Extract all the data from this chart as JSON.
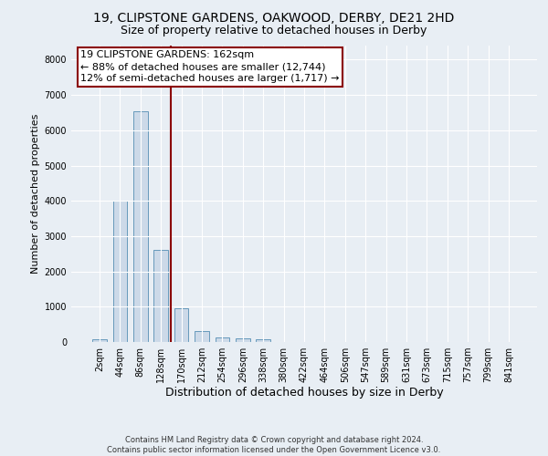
{
  "title1": "19, CLIPSTONE GARDENS, OAKWOOD, DERBY, DE21 2HD",
  "title2": "Size of property relative to detached houses in Derby",
  "xlabel": "Distribution of detached houses by size in Derby",
  "ylabel": "Number of detached properties",
  "bar_labels": [
    "2sqm",
    "44sqm",
    "86sqm",
    "128sqm",
    "170sqm",
    "212sqm",
    "254sqm",
    "296sqm",
    "338sqm",
    "380sqm",
    "422sqm",
    "464sqm",
    "506sqm",
    "547sqm",
    "589sqm",
    "631sqm",
    "673sqm",
    "715sqm",
    "757sqm",
    "799sqm",
    "841sqm"
  ],
  "bar_values": [
    75,
    4000,
    6550,
    2600,
    950,
    320,
    130,
    100,
    75,
    0,
    0,
    0,
    0,
    0,
    0,
    0,
    0,
    0,
    0,
    0,
    0
  ],
  "bar_color": "#ccd9e8",
  "bar_edgecolor": "#6699bb",
  "vline_color": "#8b0000",
  "vline_pos": 3.5,
  "annotation_text": "19 CLIPSTONE GARDENS: 162sqm\n← 88% of detached houses are smaller (12,744)\n12% of semi-detached houses are larger (1,717) →",
  "annotation_box_color": "#8b0000",
  "ylim": [
    0,
    8400
  ],
  "yticks": [
    0,
    1000,
    2000,
    3000,
    4000,
    5000,
    6000,
    7000,
    8000
  ],
  "bg_color": "#e8eef4",
  "plot_bg_color": "#e8eef4",
  "footer": "Contains HM Land Registry data © Crown copyright and database right 2024.\nContains public sector information licensed under the Open Government Licence v3.0.",
  "title1_fontsize": 10,
  "title2_fontsize": 9,
  "xlabel_fontsize": 9,
  "ylabel_fontsize": 8,
  "tick_fontsize": 7,
  "annotation_fontsize": 8,
  "footer_fontsize": 6
}
